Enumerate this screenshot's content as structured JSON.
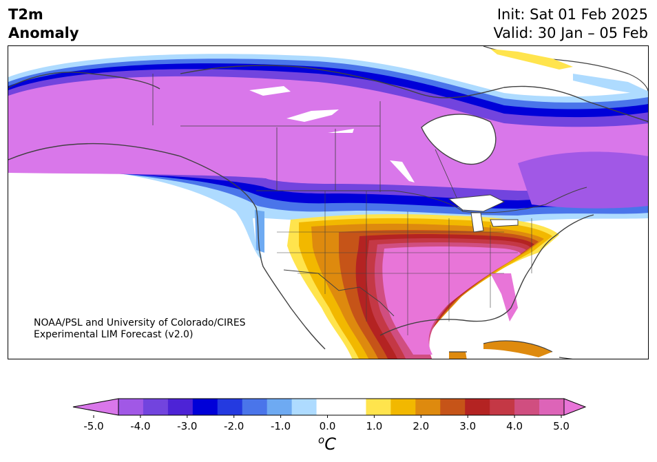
{
  "header": {
    "title_line1": "T2m",
    "title_line2": "Anomaly",
    "init": "Init: Sat 01 Feb 2025",
    "valid": "Valid: 30 Jan – 05 Feb"
  },
  "credit": {
    "line1": "NOAA/PSL and University of Colorado/CIRES",
    "line2": "Experimental LIM Forecast (v2.0)"
  },
  "colorbar": {
    "ticks": [
      "-5.0",
      "-4.0",
      "-3.0",
      "-2.0",
      "-1.0",
      "0.0",
      "1.0",
      "2.0",
      "3.0",
      "4.0",
      "5.0"
    ],
    "unit_base": "C",
    "unit_sup": "o",
    "colors": {
      "cold_extreme": "#d977ea",
      "neg_4_5": "#a158e6",
      "neg_4": "#7244de",
      "neg_3_5": "#4d23d6",
      "neg_3": "#0000d8",
      "neg_2_5": "#243ae0",
      "neg_2": "#4a75ea",
      "neg_1_5": "#6eaaf2",
      "neg_1": "#aedbff",
      "neutral": "#ffffff",
      "pos_1": "#ffe44d",
      "pos_1_5": "#f2b800",
      "pos_2": "#de8a0e",
      "pos_2_5": "#c65418",
      "pos_3": "#b42322",
      "pos_3_5": "#c43845",
      "pos_4": "#d04e80",
      "pos_4_5": "#dd64b8",
      "warm_extreme": "#e875d8"
    }
  },
  "map": {
    "projection": "North America",
    "coastline_color": "#404040",
    "border_color": "#404040"
  }
}
